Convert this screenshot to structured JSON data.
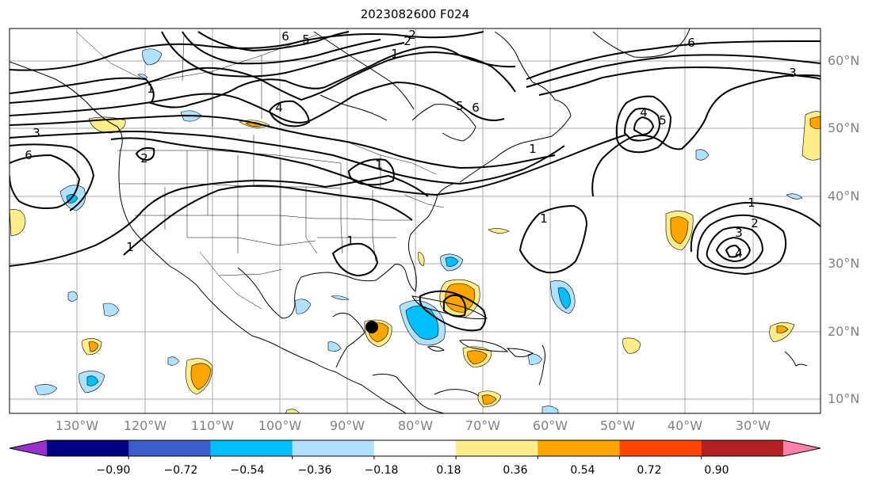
{
  "title": "2023082600 F024",
  "lat_labels": [
    "60°N",
    "50°N",
    "40°N",
    "30°N",
    "20°N",
    "10°N"
  ],
  "lon_labels": [
    "130°W",
    "120°W",
    "110°W",
    "100°W",
    "90°W",
    "80°W",
    "70°W",
    "60°W",
    "50°W",
    "40°W",
    "30°W"
  ],
  "colorbar": {
    "ticks": [
      "−0.90",
      "−0.72",
      "−0.54",
      "−0.36",
      "−0.18",
      "0.18",
      "0.36",
      "0.54",
      "0.72",
      "0.90"
    ],
    "colors": [
      "#9932cc",
      "#000080",
      "#3a5fcd",
      "#00bfff",
      "#b0e2ff",
      "#ffffff",
      "#ffec8b",
      "#ffa500",
      "#ff4500",
      "#b22222",
      "#ff82ab"
    ],
    "extend": "both"
  },
  "contour_labels": [
    "6",
    "5",
    "2",
    "2",
    "1",
    "1",
    "3",
    "6",
    "2",
    "1",
    "6",
    "5",
    "4",
    "1",
    "1",
    "4",
    "5",
    "3",
    "6",
    "1",
    "1",
    "1",
    "2",
    "3",
    "4"
  ],
  "colors": {
    "gridline": "#a9a9a9",
    "coastline": "#000000",
    "label": "#808080"
  }
}
